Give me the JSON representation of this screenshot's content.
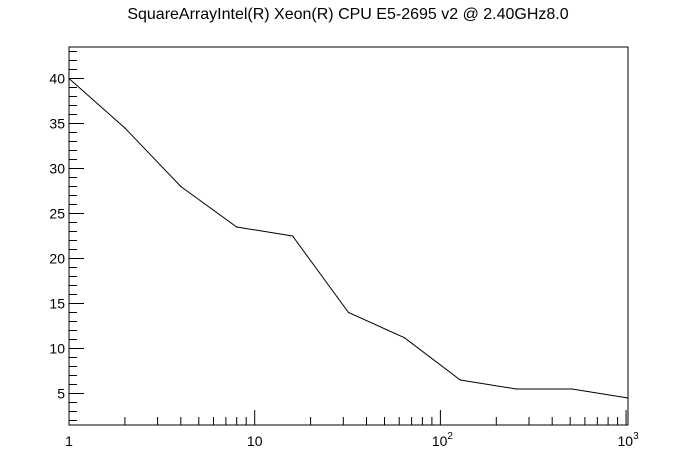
{
  "chart_data": {
    "type": "line",
    "title": "SquareArrayIntel(R) Xeon(R) CPU E5-2695 v2 @ 2.40GHz8.0",
    "xlabel": "",
    "ylabel": "",
    "x_scale": "log",
    "xlim": [
      1,
      1024
    ],
    "ylim": [
      1.5,
      43.5
    ],
    "grid": false,
    "x_ticks": [
      {
        "value": 1,
        "base": "1",
        "exp": ""
      },
      {
        "value": 10,
        "base": "10",
        "exp": ""
      },
      {
        "value": 100,
        "base": "10",
        "exp": "2"
      },
      {
        "value": 1000,
        "base": "10",
        "exp": "3"
      }
    ],
    "y_ticks": [
      5,
      10,
      15,
      20,
      25,
      30,
      35,
      40
    ],
    "series": [
      {
        "color": "#000000",
        "x": [
          1,
          2,
          4,
          8,
          16,
          32,
          64,
          128,
          256,
          512,
          1024
        ],
        "y": [
          40,
          34.5,
          28,
          23.5,
          22.5,
          14,
          11.2,
          6.5,
          5.5,
          5.5,
          4.5
        ]
      }
    ]
  }
}
